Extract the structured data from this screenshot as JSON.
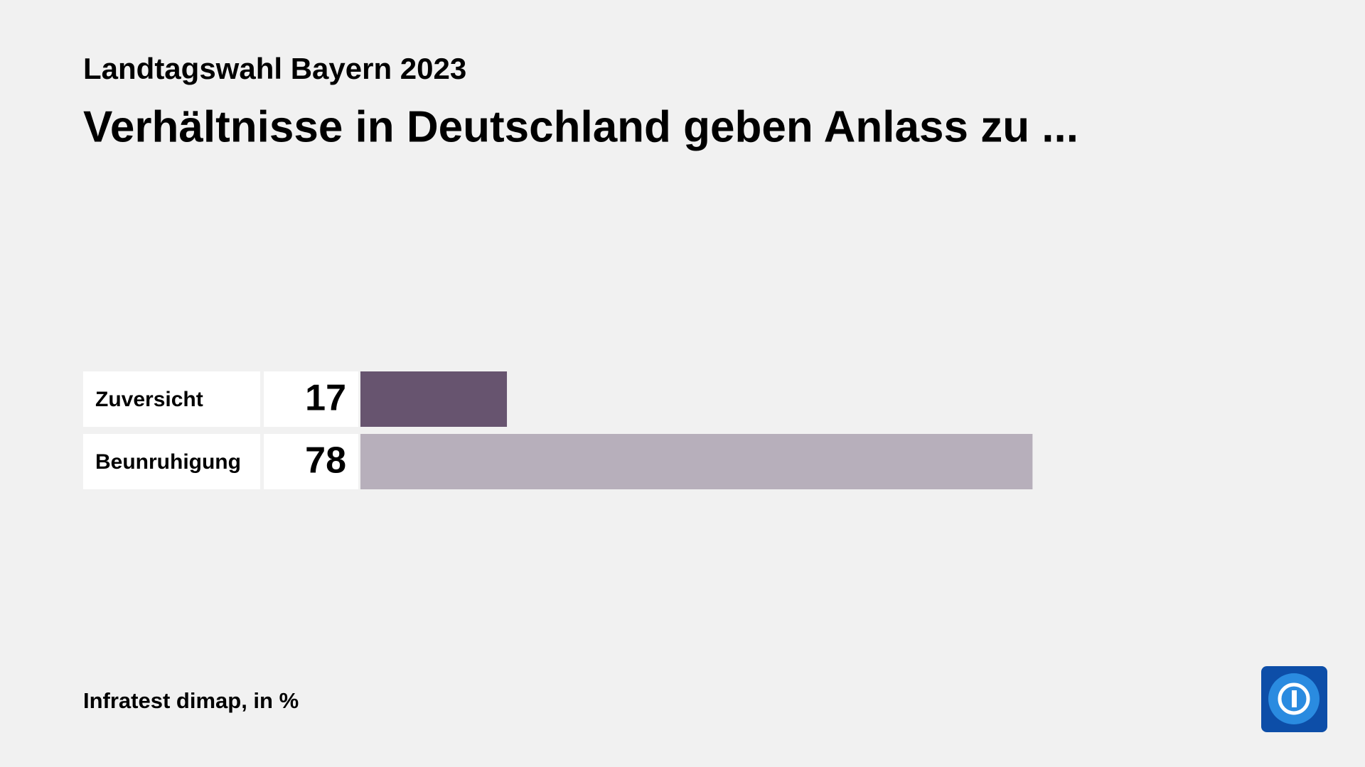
{
  "chart_data": {
    "type": "bar",
    "subtitle": "Landtagswahl Bayern 2023",
    "title": "Verhältnisse in Deutschland geben Anlass zu ...",
    "categories": [
      "Zuversicht",
      "Beunruhigung"
    ],
    "values": [
      17,
      78
    ],
    "colors": [
      "#67546f",
      "#b7afbb"
    ],
    "source": "Infratest dimap, in %"
  }
}
